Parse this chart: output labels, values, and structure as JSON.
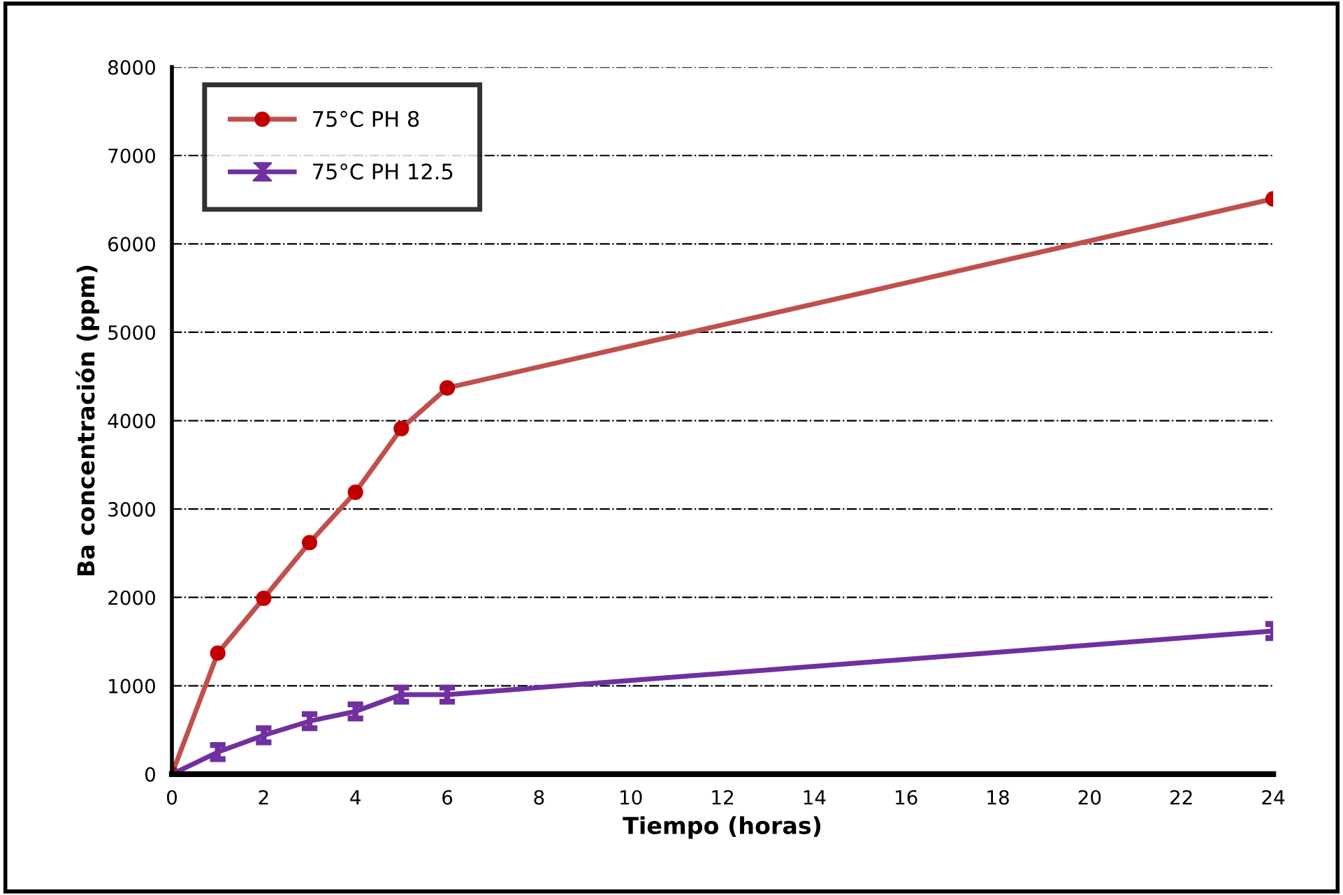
{
  "chart_data": {
    "type": "line",
    "xlabel": "Tiempo (horas)",
    "ylabel": "Ba concentración (ppm)",
    "x": [
      0,
      1,
      2,
      3,
      4,
      5,
      6,
      24
    ],
    "series": [
      {
        "name": "75°C PH 8",
        "color": "#c0504d",
        "values": [
          0,
          1370,
          1990,
          2620,
          3190,
          3910,
          4370,
          6510
        ],
        "marker": "circle"
      },
      {
        "name": "75°C PH 12.5",
        "color": "#7030a0",
        "values": [
          0,
          250,
          440,
          600,
          710,
          900,
          900,
          1620
        ],
        "marker": "none",
        "errors": [
          null,
          80,
          80,
          80,
          80,
          80,
          80,
          80
        ]
      }
    ],
    "xlim": [
      0,
      24
    ],
    "xticks": [
      0,
      2,
      4,
      6,
      8,
      10,
      12,
      14,
      16,
      18,
      20,
      22,
      24
    ],
    "ylim": [
      0,
      8000
    ],
    "yticks": [
      0,
      1000,
      2000,
      3000,
      4000,
      5000,
      6000,
      7000,
      8000
    ],
    "grid": "y",
    "legend": "top left",
    "line_style": "solid"
  }
}
